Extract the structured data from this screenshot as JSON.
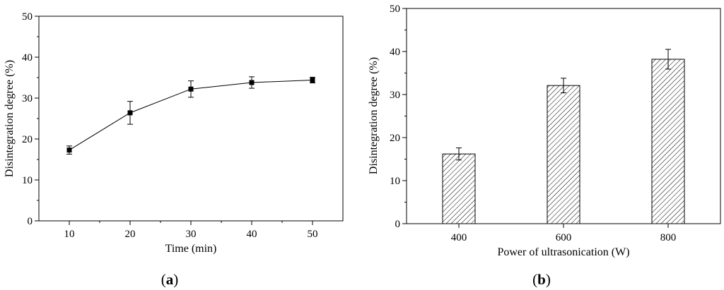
{
  "chart_data": [
    {
      "type": "line",
      "panel_label": {
        "open": "(",
        "letter": "a",
        "close": ")"
      },
      "xlabel": "Time (min)",
      "ylabel": "Disintegration degree (%)",
      "xlim": [
        5,
        55
      ],
      "ylim": [
        0,
        50
      ],
      "xticks": [
        10,
        20,
        30,
        40,
        50
      ],
      "yticks": [
        0,
        10,
        20,
        30,
        40,
        50
      ],
      "series": [
        {
          "x": [
            10,
            20,
            30,
            40,
            50
          ],
          "y": [
            17.3,
            26.4,
            32.2,
            33.8,
            34.4
          ],
          "error": [
            1.0,
            2.8,
            2.0,
            1.4,
            0.7
          ],
          "marker": "square",
          "color": "#000000"
        }
      ],
      "grid": false
    },
    {
      "type": "bar",
      "panel_label": {
        "open": "(",
        "letter": "b",
        "close": ")"
      },
      "xlabel": "Power of ultrasonication (W)",
      "ylabel": "Disintegration degree (%)",
      "categories": [
        "400",
        "600",
        "800"
      ],
      "ylim": [
        0,
        50
      ],
      "yticks": [
        0,
        10,
        20,
        30,
        40,
        50
      ],
      "values": [
        16.2,
        32.1,
        38.2
      ],
      "error": [
        1.4,
        1.7,
        2.3
      ],
      "bar_fill": "hatched",
      "color": "#000000",
      "grid": false
    }
  ]
}
